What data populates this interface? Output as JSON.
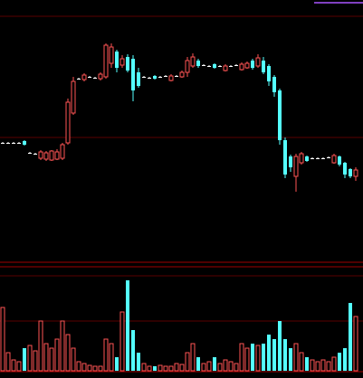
{
  "chart_data": {
    "type": "candlestick",
    "open": [
      127,
      127,
      127,
      127,
      129,
      116,
      115,
      110,
      109,
      108,
      109,
      110,
      127,
      160,
      198,
      197,
      200,
      199,
      198,
      200,
      215,
      228,
      213,
      222,
      220,
      205,
      200,
      199,
      201,
      200,
      201,
      196,
      201,
      200,
      205,
      212,
      218,
      213,
      212,
      214,
      212,
      207,
      212,
      213,
      208,
      210,
      218,
      212,
      218,
      212,
      200,
      185,
      130,
      112,
      90,
      105,
      112,
      110,
      110,
      110,
      111,
      105,
      112,
      105,
      98,
      90
    ],
    "close": [
      127,
      127,
      127,
      127,
      125,
      116,
      115,
      117,
      116,
      118,
      117,
      125,
      172,
      195,
      198,
      202,
      200,
      199,
      203,
      235,
      233,
      210,
      220,
      207,
      185,
      190,
      200,
      199,
      198,
      200,
      201,
      201,
      201,
      205,
      218,
      222,
      212,
      213,
      212,
      210,
      212,
      212,
      212,
      213,
      214,
      215,
      210,
      221,
      205,
      195,
      183,
      130,
      92,
      100,
      112,
      115,
      107,
      110,
      110,
      110,
      111,
      113,
      103,
      92,
      90,
      97
    ],
    "high": [
      128,
      128,
      128,
      128,
      130,
      117,
      116,
      119,
      118,
      119,
      120,
      127,
      176,
      200,
      199,
      204,
      201,
      200,
      205,
      237,
      237,
      230,
      224,
      225,
      224,
      210,
      201,
      200,
      202,
      201,
      202,
      203,
      202,
      207,
      222,
      226,
      220,
      214,
      213,
      215,
      213,
      214,
      213,
      214,
      216,
      217,
      220,
      225,
      222,
      214,
      202,
      187,
      133,
      114,
      115,
      117,
      113,
      111,
      111,
      111,
      112,
      115,
      113,
      106,
      99,
      100
    ],
    "low": [
      126,
      126,
      126,
      126,
      124,
      115,
      114,
      108,
      107,
      107,
      108,
      108,
      125,
      158,
      197,
      195,
      199,
      198,
      196,
      198,
      210,
      205,
      210,
      205,
      173,
      188,
      199,
      198,
      197,
      199,
      200,
      195,
      200,
      199,
      200,
      210,
      210,
      212,
      211,
      209,
      211,
      206,
      211,
      212,
      207,
      209,
      208,
      210,
      203,
      190,
      178,
      125,
      88,
      95,
      73,
      103,
      106,
      109,
      109,
      109,
      110,
      104,
      101,
      88,
      88,
      85
    ],
    "volume": [
      70,
      20,
      12,
      10,
      25,
      28,
      22,
      55,
      30,
      25,
      35,
      55,
      40,
      25,
      10,
      8,
      6,
      5,
      5,
      35,
      30,
      15,
      65,
      100,
      45,
      20,
      8,
      5,
      5,
      6,
      5,
      5,
      8,
      7,
      20,
      30,
      15,
      8,
      10,
      15,
      8,
      12,
      10,
      8,
      30,
      25,
      30,
      28,
      30,
      40,
      35,
      55,
      35,
      25,
      30,
      20,
      15,
      12,
      10,
      12,
      10,
      15,
      20,
      25,
      75,
      60
    ],
    "ylim": [
      0,
      275
    ],
    "volume_ylim": [
      0,
      110
    ],
    "up_color": "#ff5555",
    "down_color": "#54ffff",
    "flat_color": "#ffffff"
  }
}
